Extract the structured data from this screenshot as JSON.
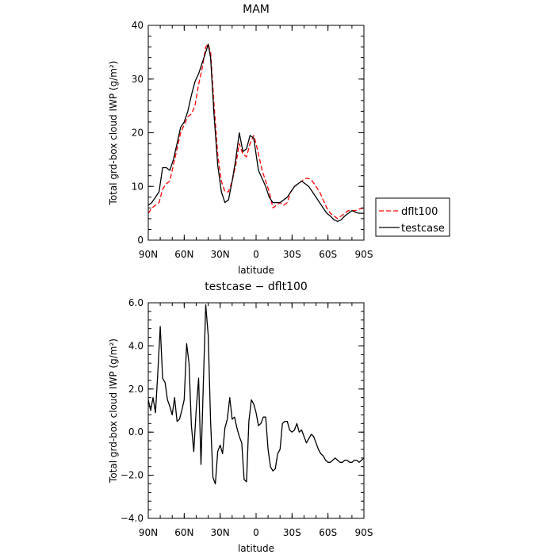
{
  "chart_data": [
    {
      "type": "line",
      "title": "MAM",
      "xlabel": "latitude",
      "ylabel": "Total grd-box cloud IWP (g/m²)",
      "xlim": [
        90,
        -90
      ],
      "ylim": [
        0,
        40
      ],
      "xticks": [
        90,
        60,
        30,
        0,
        -30,
        -60,
        -90
      ],
      "xtick_labels": [
        "90N",
        "60N",
        "30N",
        "0",
        "30S",
        "60S",
        "90S"
      ],
      "yticks": [
        0,
        10,
        20,
        30,
        40
      ],
      "ytick_labels": [
        "0",
        "10",
        "20",
        "30",
        "40"
      ],
      "legend": {
        "position": "right",
        "entries": [
          "dflt100",
          "testcase"
        ]
      },
      "series": [
        {
          "name": "dflt100",
          "color": "#ff0000",
          "dash": "dashed",
          "x": [
            90,
            87,
            84,
            81,
            78,
            75,
            72,
            69,
            66,
            63,
            60,
            57,
            54,
            51,
            48,
            45,
            42,
            40,
            38,
            35,
            32,
            29,
            26,
            23,
            20,
            17,
            14,
            11,
            8,
            5,
            2,
            0,
            -2,
            -5,
            -8,
            -11,
            -14,
            -17,
            -20,
            -23,
            -26,
            -29,
            -32,
            -35,
            -38,
            -41,
            -44,
            -47,
            -50,
            -53,
            -56,
            -59,
            -62,
            -65,
            -68,
            -71,
            -74,
            -77,
            -80,
            -83,
            -86,
            -90
          ],
          "y": [
            5,
            6,
            6.5,
            7,
            9.5,
            10.5,
            11,
            14,
            17,
            20,
            21.5,
            23,
            23.5,
            25,
            29,
            32,
            36,
            36.5,
            35,
            25,
            16,
            11,
            9,
            9,
            11,
            14,
            18,
            16,
            15.5,
            18,
            19.5,
            18,
            16,
            13,
            11,
            9,
            6,
            6.5,
            7,
            6.5,
            7,
            9,
            10,
            10.5,
            11,
            11.5,
            11.5,
            11,
            10,
            9,
            7.5,
            6,
            5,
            4.5,
            4,
            4.5,
            5,
            5.5,
            5.5,
            5.5,
            5.8,
            6
          ]
        },
        {
          "name": "testcase",
          "color": "#000000",
          "dash": "solid",
          "x": [
            90,
            87,
            84,
            81,
            78,
            75,
            72,
            69,
            66,
            63,
            60,
            57,
            54,
            51,
            48,
            45,
            42,
            40,
            38,
            35,
            32,
            29,
            26,
            23,
            20,
            17,
            14,
            11,
            8,
            5,
            2,
            0,
            -2,
            -5,
            -8,
            -11,
            -14,
            -17,
            -20,
            -23,
            -26,
            -29,
            -32,
            -35,
            -38,
            -41,
            -44,
            -47,
            -50,
            -53,
            -56,
            -59,
            -62,
            -65,
            -68,
            -71,
            -74,
            -77,
            -80,
            -83,
            -86,
            -90
          ],
          "y": [
            6.5,
            7,
            8,
            9,
            13.5,
            13.5,
            13,
            15,
            18,
            21,
            22,
            24,
            27,
            29.5,
            31,
            33,
            35,
            36.5,
            34,
            23,
            14,
            9,
            7,
            7.5,
            11,
            15,
            20,
            16.5,
            17,
            19.5,
            19,
            16,
            13,
            11.5,
            10,
            8,
            7,
            7,
            7,
            7.5,
            8,
            9,
            10,
            10.5,
            11,
            10.5,
            10,
            9,
            8,
            7,
            6,
            5,
            4.5,
            3.8,
            3.5,
            3.8,
            4.5,
            5,
            5.5,
            5.2,
            5,
            5
          ]
        }
      ]
    },
    {
      "type": "line",
      "title": "testcase − dflt100",
      "xlabel": "latitude",
      "ylabel": "Total grd-box cloud IWP (g/m²)",
      "xlim": [
        90,
        -90
      ],
      "ylim": [
        -4,
        6
      ],
      "xticks": [
        90,
        60,
        30,
        0,
        -30,
        -60,
        -90
      ],
      "xtick_labels": [
        "90N",
        "60N",
        "30N",
        "0",
        "30S",
        "60S",
        "90S"
      ],
      "yticks": [
        -4,
        -2,
        0,
        2,
        4,
        6
      ],
      "ytick_labels": [
        "−4.0",
        "−2.0",
        "0.0",
        "2.0",
        "4.0",
        "6.0"
      ],
      "series": [
        {
          "color": "#000000",
          "dash": "solid",
          "x": [
            90,
            88,
            86,
            84,
            82,
            80,
            78,
            76,
            74,
            72,
            70,
            68,
            66,
            64,
            62,
            60,
            58,
            56,
            54,
            52,
            50,
            48,
            46,
            44,
            42,
            40,
            38,
            36,
            34,
            32,
            30,
            28,
            26,
            24,
            22,
            20,
            18,
            16,
            14,
            12,
            10,
            8,
            6,
            4,
            2,
            0,
            -2,
            -4,
            -6,
            -8,
            -10,
            -12,
            -14,
            -16,
            -18,
            -20,
            -22,
            -24,
            -26,
            -28,
            -30,
            -32,
            -34,
            -36,
            -38,
            -40,
            -42,
            -44,
            -46,
            -48,
            -50,
            -52,
            -54,
            -56,
            -58,
            -60,
            -62,
            -64,
            -66,
            -68,
            -70,
            -72,
            -74,
            -76,
            -78,
            -80,
            -82,
            -84,
            -86,
            -88,
            -90
          ],
          "y": [
            1.5,
            1.0,
            1.6,
            0.9,
            2.8,
            4.9,
            2.5,
            2.3,
            1.5,
            1.2,
            0.8,
            1.6,
            0.5,
            0.6,
            1.0,
            1.5,
            4.1,
            3.2,
            0.3,
            -0.9,
            1.0,
            2.5,
            -1.5,
            2.3,
            5.9,
            4.5,
            0.5,
            -2.1,
            -2.4,
            -0.9,
            -0.6,
            -1.0,
            0.2,
            0.6,
            1.6,
            0.6,
            0.7,
            0.2,
            -0.2,
            -0.5,
            -2.2,
            -2.3,
            0.5,
            1.5,
            1.3,
            0.9,
            0.3,
            0.4,
            0.7,
            0.7,
            -0.8,
            -1.6,
            -1.8,
            -1.7,
            -1.0,
            -0.8,
            0.4,
            0.5,
            0.5,
            0.1,
            0.0,
            0.1,
            0.4,
            0.0,
            0.1,
            -0.2,
            -0.5,
            -0.3,
            -0.1,
            -0.2,
            -0.5,
            -0.8,
            -1.0,
            -1.1,
            -1.3,
            -1.4,
            -1.4,
            -1.3,
            -1.2,
            -1.3,
            -1.4,
            -1.4,
            -1.3,
            -1.3,
            -1.4,
            -1.4,
            -1.3,
            -1.3,
            -1.4,
            -1.3,
            -1.2
          ]
        }
      ]
    }
  ]
}
